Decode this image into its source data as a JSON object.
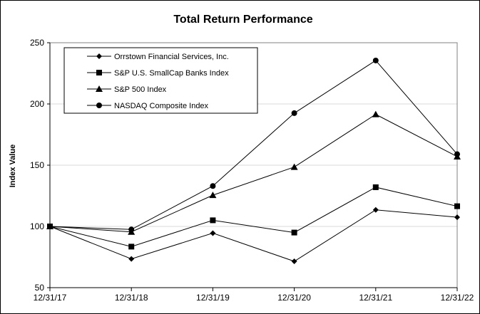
{
  "chart_data": {
    "type": "line",
    "title": "Total Return Performance",
    "xlabel": "",
    "ylabel": "Index Value",
    "categories": [
      "12/31/17",
      "12/31/18",
      "12/31/19",
      "12/31/20",
      "12/31/21",
      "12/31/22"
    ],
    "yticks": [
      "50",
      "100",
      "150",
      "200",
      "250"
    ],
    "ylim": [
      50,
      250
    ],
    "grid": true,
    "legend_position": "top-left",
    "series": [
      {
        "name": "Orrstown Financial Services, Inc.",
        "marker": "diamond",
        "values": [
          100,
          73.5,
          94.5,
          71.5,
          113.5,
          107.5
        ]
      },
      {
        "name": "S&P U.S. SmallCap Banks Index",
        "marker": "square",
        "values": [
          100,
          83.5,
          105,
          95,
          132,
          116.5
        ]
      },
      {
        "name": "S&P 500 Index",
        "marker": "triangle",
        "values": [
          100,
          95.5,
          125.5,
          148.5,
          191.5,
          157
        ]
      },
      {
        "name": "NASDAQ Composite Index",
        "marker": "circle",
        "values": [
          100,
          97.5,
          133,
          192.5,
          235.5,
          159
        ]
      }
    ],
    "colors": {
      "line": "#000000",
      "grid": "#d9d9d9",
      "background": "#ffffff"
    }
  }
}
